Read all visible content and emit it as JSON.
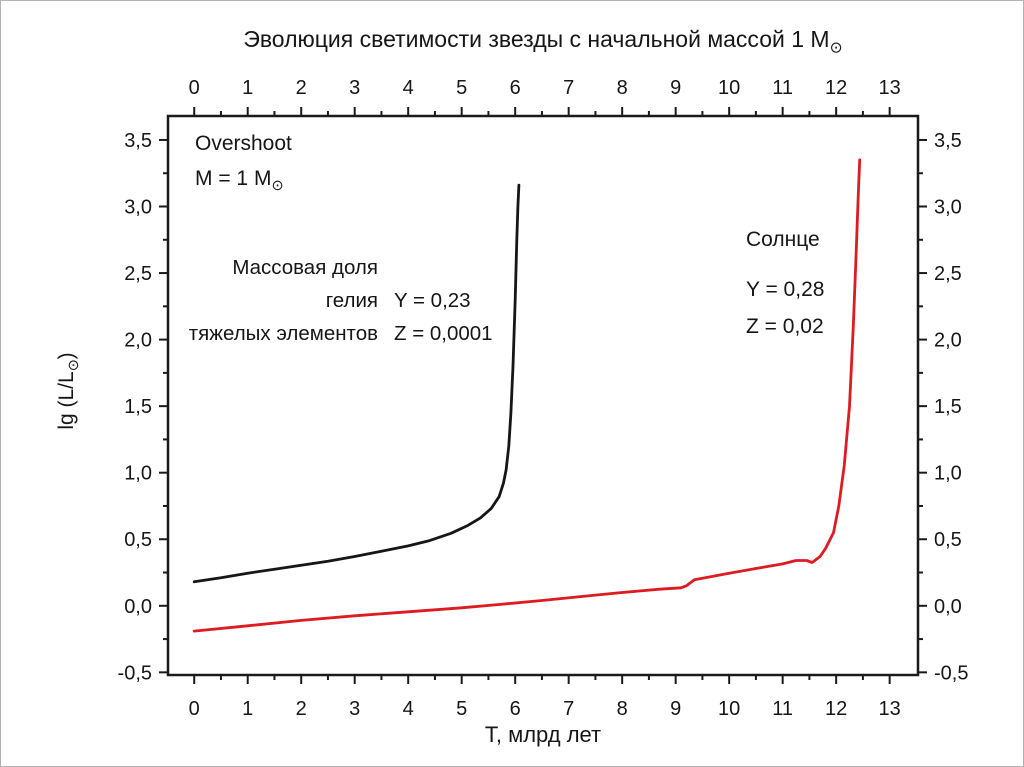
{
  "page": {
    "background": "#ffffff"
  },
  "chart_data": {
    "type": "line",
    "title": {
      "text": "Эволюция светимости звезды с начальной массой 1 М",
      "subscript": "⊙"
    },
    "xlabel": "Т, млрд лет",
    "ylabel": {
      "pre": "lg (L/L",
      "subscript": "⊙",
      "post": ")"
    },
    "xlim": [
      -0.49,
      13.53
    ],
    "ylim": [
      -0.52,
      3.68
    ],
    "grid": false,
    "frame_color": "#1a1a1a",
    "ticks_outside_all_four_sides": true,
    "x_major_ticks": [
      {
        "v": 0,
        "label": "0"
      },
      {
        "v": 1,
        "label": "1"
      },
      {
        "v": 2,
        "label": "2"
      },
      {
        "v": 3,
        "label": "3"
      },
      {
        "v": 4,
        "label": "4"
      },
      {
        "v": 5,
        "label": "5"
      },
      {
        "v": 6,
        "label": "6"
      },
      {
        "v": 7,
        "label": "7"
      },
      {
        "v": 8,
        "label": "8"
      },
      {
        "v": 9,
        "label": "9"
      },
      {
        "v": 10,
        "label": "10"
      },
      {
        "v": 11,
        "label": "11"
      },
      {
        "v": 12,
        "label": "12"
      },
      {
        "v": 13,
        "label": "13"
      }
    ],
    "y_major_ticks": [
      {
        "v": -0.5,
        "label": "-0,5"
      },
      {
        "v": 0.0,
        "label": "0,0"
      },
      {
        "v": 0.5,
        "label": "0,5"
      },
      {
        "v": 1.0,
        "label": "1,0"
      },
      {
        "v": 1.5,
        "label": "1,5"
      },
      {
        "v": 2.0,
        "label": "2,0"
      },
      {
        "v": 2.5,
        "label": "2,5"
      },
      {
        "v": 3.0,
        "label": "3,0"
      },
      {
        "v": 3.5,
        "label": "3,5"
      }
    ],
    "series": [
      {
        "name": "Overshoot",
        "color": "#161616",
        "points": [
          [
            0,
            0.18
          ],
          [
            0.5,
            0.21
          ],
          [
            1,
            0.245
          ],
          [
            1.5,
            0.275
          ],
          [
            2,
            0.305
          ],
          [
            2.5,
            0.335
          ],
          [
            3,
            0.37
          ],
          [
            3.5,
            0.41
          ],
          [
            4,
            0.45
          ],
          [
            4.4,
            0.49
          ],
          [
            4.8,
            0.545
          ],
          [
            5.1,
            0.6
          ],
          [
            5.35,
            0.66
          ],
          [
            5.55,
            0.73
          ],
          [
            5.7,
            0.82
          ],
          [
            5.78,
            0.92
          ],
          [
            5.83,
            1.02
          ],
          [
            5.88,
            1.2
          ],
          [
            5.92,
            1.45
          ],
          [
            5.96,
            1.8
          ],
          [
            6.0,
            2.3
          ],
          [
            6.03,
            2.75
          ],
          [
            6.05,
            3.0
          ],
          [
            6.07,
            3.16
          ]
        ]
      },
      {
        "name": "Солнце",
        "color": "#dd1c22",
        "points": [
          [
            0,
            -0.19
          ],
          [
            1,
            -0.15
          ],
          [
            2,
            -0.11
          ],
          [
            3,
            -0.075
          ],
          [
            4,
            -0.045
          ],
          [
            5,
            -0.015
          ],
          [
            5.7,
            0.01
          ],
          [
            6.5,
            0.04
          ],
          [
            7.5,
            0.08
          ],
          [
            8,
            0.1
          ],
          [
            8.7,
            0.125
          ],
          [
            9.1,
            0.135
          ],
          [
            9.2,
            0.15
          ],
          [
            9.35,
            0.195
          ],
          [
            9.6,
            0.215
          ],
          [
            10,
            0.245
          ],
          [
            10.5,
            0.28
          ],
          [
            11,
            0.315
          ],
          [
            11.25,
            0.34
          ],
          [
            11.45,
            0.34
          ],
          [
            11.55,
            0.325
          ],
          [
            11.7,
            0.37
          ],
          [
            11.8,
            0.43
          ],
          [
            11.95,
            0.55
          ],
          [
            12.05,
            0.75
          ],
          [
            12.15,
            1.05
          ],
          [
            12.25,
            1.5
          ],
          [
            12.32,
            2.1
          ],
          [
            12.37,
            2.6
          ],
          [
            12.4,
            2.95
          ],
          [
            12.42,
            3.15
          ],
          [
            12.44,
            3.35
          ]
        ]
      }
    ]
  },
  "annotations": {
    "overshoot": "Overshoot",
    "mass": {
      "pre": "M = 1 M",
      "subscript": "⊙"
    },
    "fraction": {
      "line1_left": "Массовая доля",
      "line2_left": "гелия",
      "line2_right": "Y = 0,23",
      "line3_left": "тяжелых элементов",
      "line3_right": "Z = 0,0001"
    },
    "sun": {
      "title": "Солнце",
      "y_value": "Y = 0,28",
      "z_value": "Z = 0,02"
    }
  }
}
